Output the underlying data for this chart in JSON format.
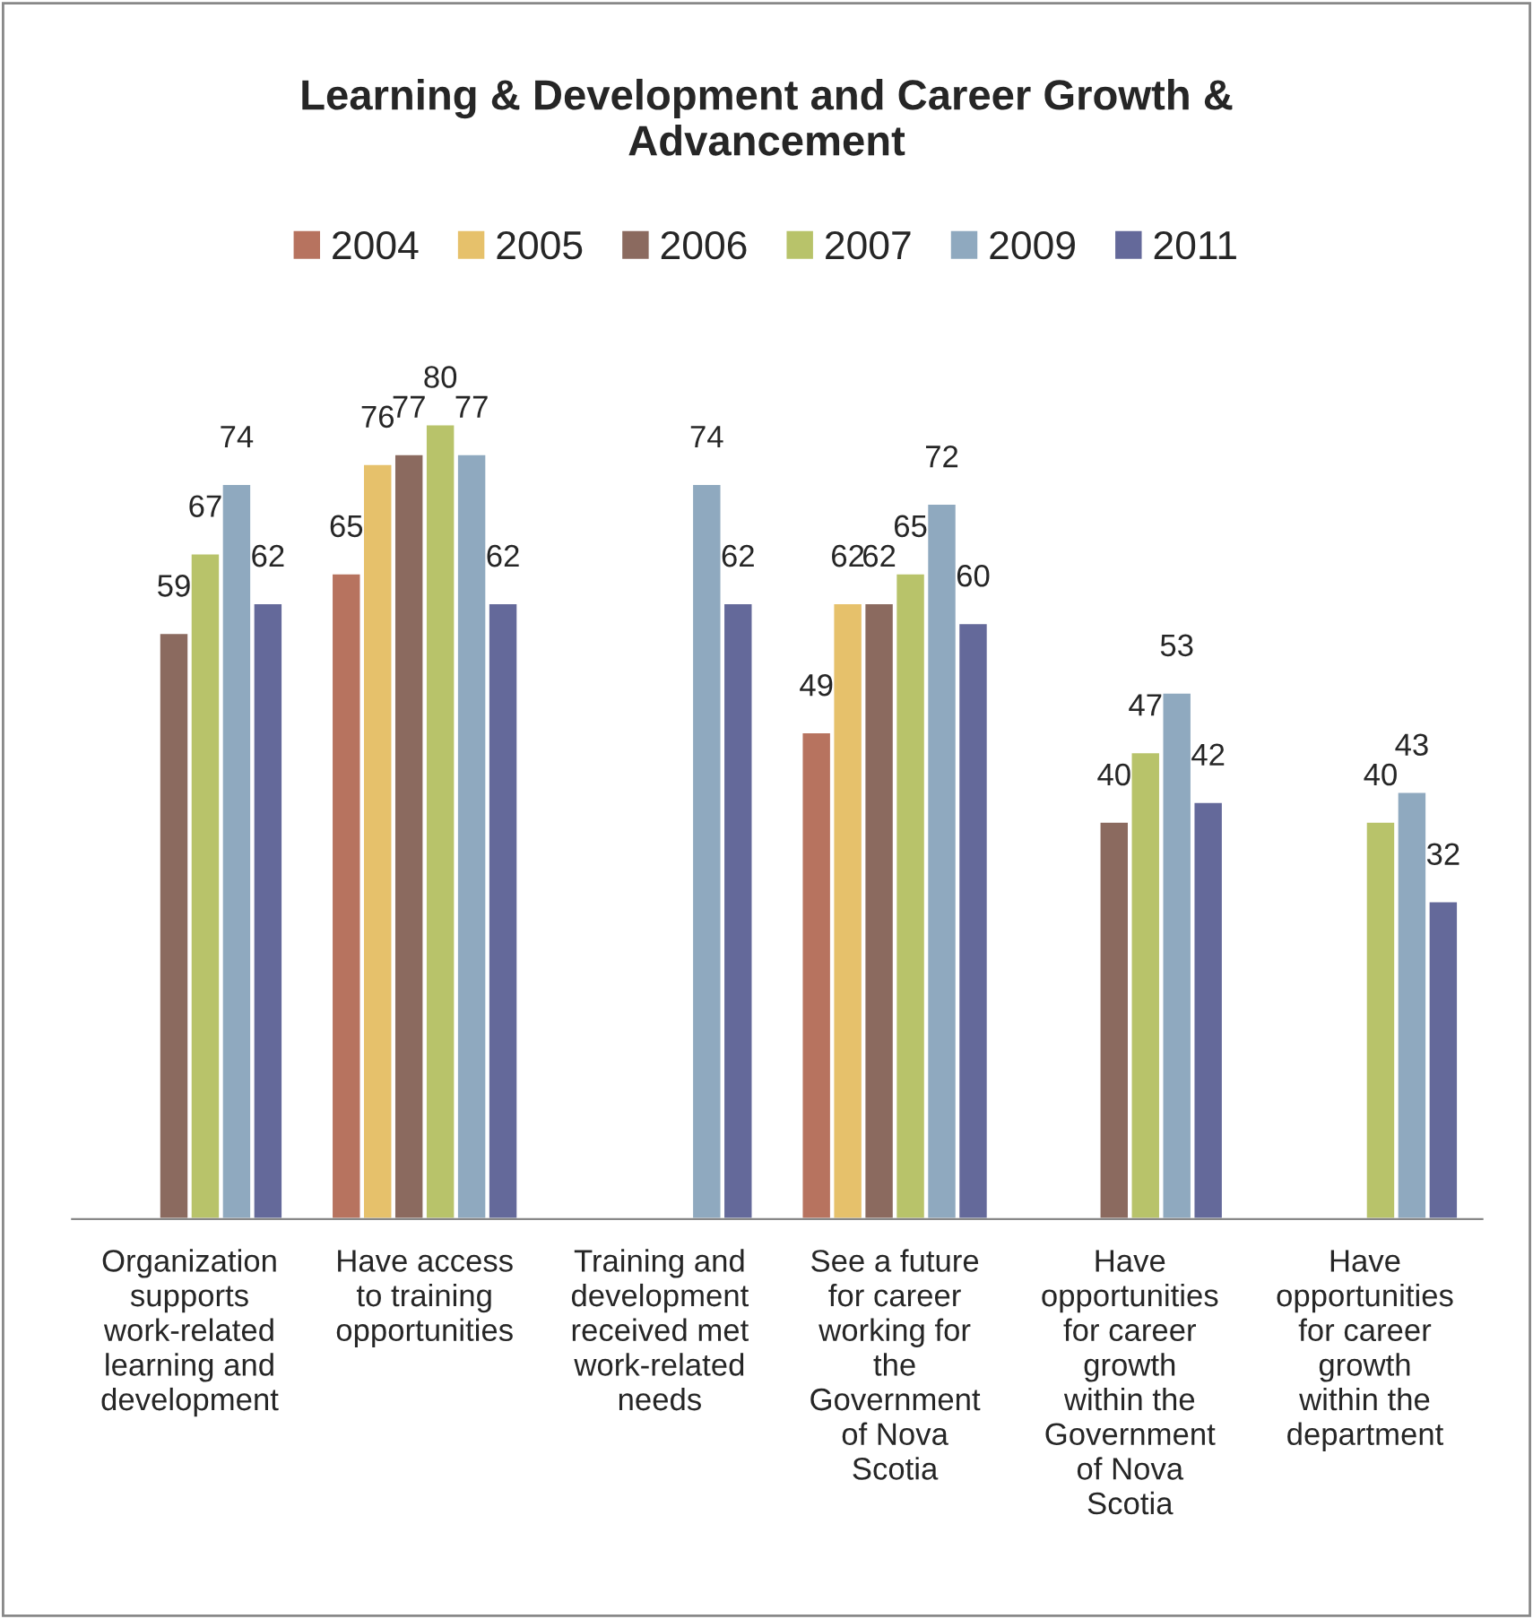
{
  "chart_data": {
    "type": "bar",
    "title": "Learning & Development and Career Growth & Advancement",
    "categories": [
      "Organization supports work-related learning and development",
      "Have access to training opportunities",
      "Training and development received met work-related needs",
      "See a future for career working for the Government of Nova Scotia",
      "Have opportunities for career growth within the Government of Nova Scotia",
      "Have opportunities for career growth within the department"
    ],
    "series": [
      {
        "name": "2004",
        "color": "#b7735f",
        "values": [
          null,
          65,
          null,
          49,
          null,
          null
        ]
      },
      {
        "name": "2005",
        "color": "#e6c16b",
        "values": [
          null,
          76,
          null,
          62,
          null,
          null
        ]
      },
      {
        "name": "2006",
        "color": "#8b6a5f",
        "values": [
          59,
          77,
          null,
          62,
          40,
          null
        ]
      },
      {
        "name": "2007",
        "color": "#b8c36a",
        "values": [
          67,
          80,
          null,
          65,
          47,
          40
        ]
      },
      {
        "name": "2009",
        "color": "#8fa9bf",
        "values": [
          74,
          77,
          74,
          72,
          53,
          43
        ]
      },
      {
        "name": "2011",
        "color": "#64699a",
        "values": [
          62,
          62,
          62,
          60,
          42,
          32
        ]
      }
    ],
    "data_labels": true,
    "legend": "top",
    "grid": false
  }
}
